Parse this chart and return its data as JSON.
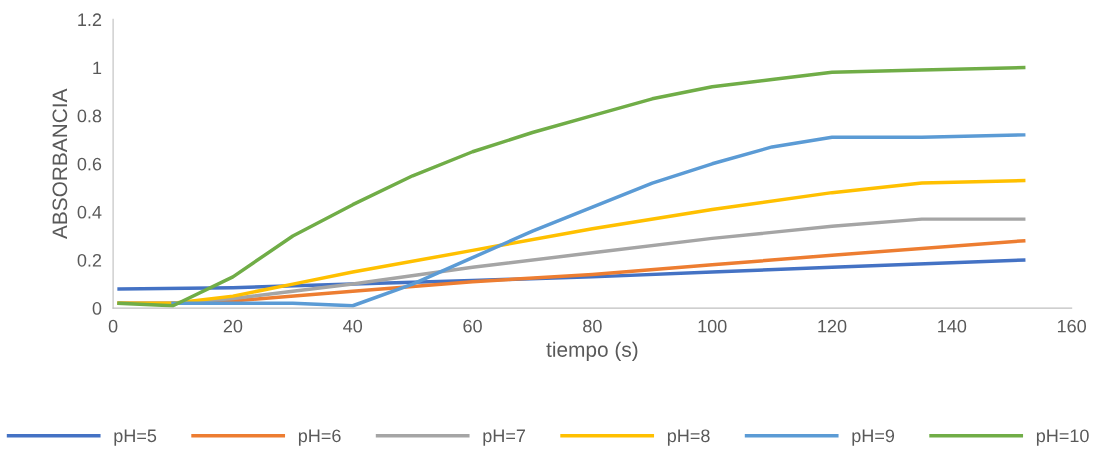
{
  "chart_data": {
    "type": "line",
    "xlabel": "tiempo (s)",
    "ylabel": "ABSORBANCIA",
    "xlim": [
      0,
      160
    ],
    "ylim": [
      0,
      1.2
    ],
    "xticks": [
      0,
      20,
      40,
      60,
      80,
      100,
      120,
      140,
      160
    ],
    "yticks": [
      0,
      0.2,
      0.4,
      0.6,
      0.8,
      1,
      1.2
    ],
    "grid": false,
    "legend": "bottom",
    "marker": "none",
    "line_style": "solid",
    "series": [
      {
        "name": "pH=5",
        "color": "#4472c4",
        "x": [
          1,
          20,
          40,
          60,
          80,
          100,
          120,
          152
        ],
        "values": [
          0.08,
          0.085,
          0.1,
          0.115,
          0.13,
          0.15,
          0.17,
          0.2
        ]
      },
      {
        "name": "pH=6",
        "color": "#ed7d31",
        "x": [
          1,
          10,
          20,
          40,
          60,
          80,
          100,
          120,
          152
        ],
        "values": [
          0.02,
          0.02,
          0.03,
          0.07,
          0.11,
          0.14,
          0.18,
          0.22,
          0.28
        ]
      },
      {
        "name": "pH=7",
        "color": "#a5a5a5",
        "x": [
          1,
          10,
          20,
          30,
          40,
          60,
          80,
          100,
          120,
          135,
          152
        ],
        "values": [
          0.02,
          0.02,
          0.04,
          0.07,
          0.1,
          0.17,
          0.23,
          0.29,
          0.34,
          0.37,
          0.37
        ]
      },
      {
        "name": "pH=8",
        "color": "#ffc000",
        "x": [
          1,
          10,
          20,
          30,
          40,
          60,
          80,
          100,
          120,
          135,
          152
        ],
        "values": [
          0.02,
          0.02,
          0.05,
          0.1,
          0.15,
          0.24,
          0.33,
          0.41,
          0.48,
          0.52,
          0.53
        ]
      },
      {
        "name": "pH=9",
        "color": "#5b9bd5",
        "x": [
          10,
          20,
          30,
          40,
          50,
          60,
          70,
          80,
          90,
          100,
          110,
          120,
          135,
          152
        ],
        "values": [
          0.02,
          0.02,
          0.02,
          0.01,
          0.1,
          0.21,
          0.32,
          0.42,
          0.52,
          0.6,
          0.67,
          0.71,
          0.71,
          0.72
        ]
      },
      {
        "name": "pH=10",
        "color": "#70ad47",
        "x": [
          1,
          10,
          20,
          30,
          40,
          50,
          60,
          70,
          80,
          90,
          100,
          110,
          120,
          135,
          152
        ],
        "values": [
          0.02,
          0.01,
          0.13,
          0.3,
          0.43,
          0.55,
          0.65,
          0.73,
          0.8,
          0.87,
          0.92,
          0.95,
          0.98,
          0.99,
          1.0
        ]
      }
    ]
  }
}
